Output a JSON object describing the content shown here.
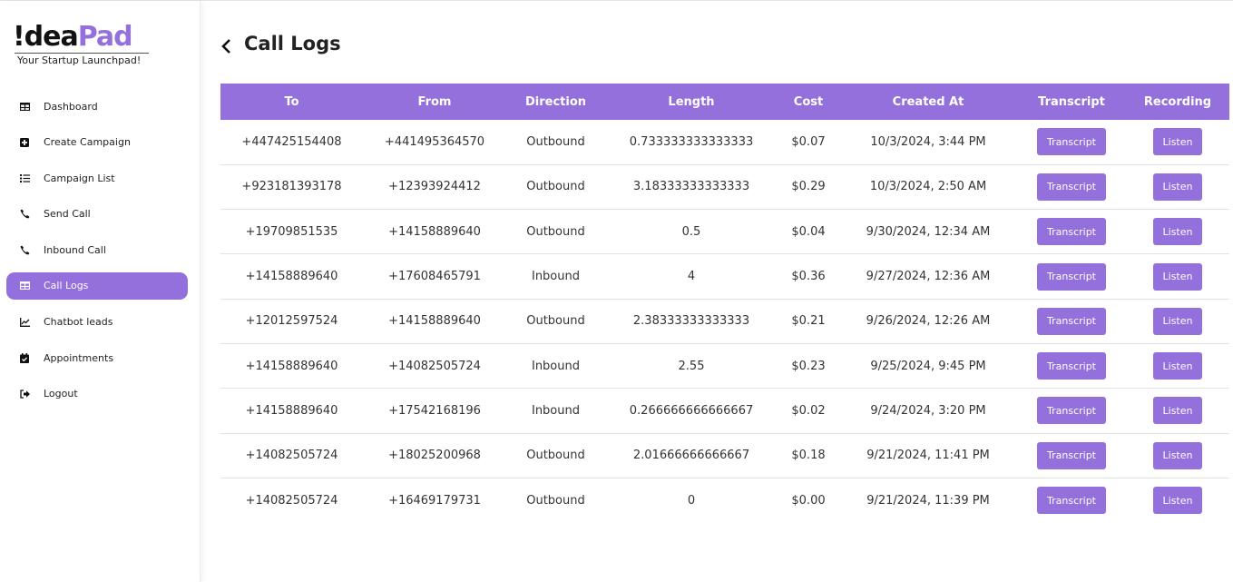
{
  "brand": {
    "name_black": "!dea",
    "name_purple": "Pad",
    "tagline": "Your Startup Launchpad!",
    "accent": "#9370db"
  },
  "sidebar": {
    "items": [
      {
        "label": "Dashboard",
        "icon": "table-icon"
      },
      {
        "label": "Create Campaign",
        "icon": "plus-square-icon"
      },
      {
        "label": "Campaign List",
        "icon": "list-icon"
      },
      {
        "label": "Send Call",
        "icon": "phone-icon"
      },
      {
        "label": "Inbound Call",
        "icon": "phone-icon"
      },
      {
        "label": "Call Logs",
        "icon": "table-icon",
        "active": true
      },
      {
        "label": "Chatbot leads",
        "icon": "chart-line-icon"
      },
      {
        "label": "Appointments",
        "icon": "calendar-check-icon"
      },
      {
        "label": "Logout",
        "icon": "sign-out-icon"
      }
    ]
  },
  "page": {
    "title": "Call Logs"
  },
  "table": {
    "columns": [
      "To",
      "From",
      "Direction",
      "Length",
      "Cost",
      "Created At",
      "Transcript",
      "Recording"
    ],
    "transcript_label": "Transcript",
    "listen_label": "Listen",
    "rows": [
      [
        "+447425154408",
        "+441495364570",
        "Outbound",
        "0.733333333333333",
        "$0.07",
        "10/3/2024, 3:44 PM"
      ],
      [
        "+923181393178",
        "+12393924412",
        "Outbound",
        "3.18333333333333",
        "$0.29",
        "10/3/2024, 2:50 AM"
      ],
      [
        "+19709851535",
        "+14158889640",
        "Outbound",
        "0.5",
        "$0.04",
        "9/30/2024, 12:34 AM"
      ],
      [
        "+14158889640",
        "+17608465791",
        "Inbound",
        "4",
        "$0.36",
        "9/27/2024, 12:36 AM"
      ],
      [
        "+12012597524",
        "+14158889640",
        "Outbound",
        "2.38333333333333",
        "$0.21",
        "9/26/2024, 12:26 AM"
      ],
      [
        "+14158889640",
        "+14082505724",
        "Inbound",
        "2.55",
        "$0.23",
        "9/25/2024, 9:45 PM"
      ],
      [
        "+14158889640",
        "+17542168196",
        "Inbound",
        "0.266666666666667",
        "$0.02",
        "9/24/2024, 3:20 PM"
      ],
      [
        "+14082505724",
        "+18025200968",
        "Outbound",
        "2.01666666666667",
        "$0.18",
        "9/21/2024, 11:41 PM"
      ],
      [
        "+14082505724",
        "+16469179731",
        "Outbound",
        "0",
        "$0.00",
        "9/21/2024, 11:39 PM"
      ]
    ]
  }
}
